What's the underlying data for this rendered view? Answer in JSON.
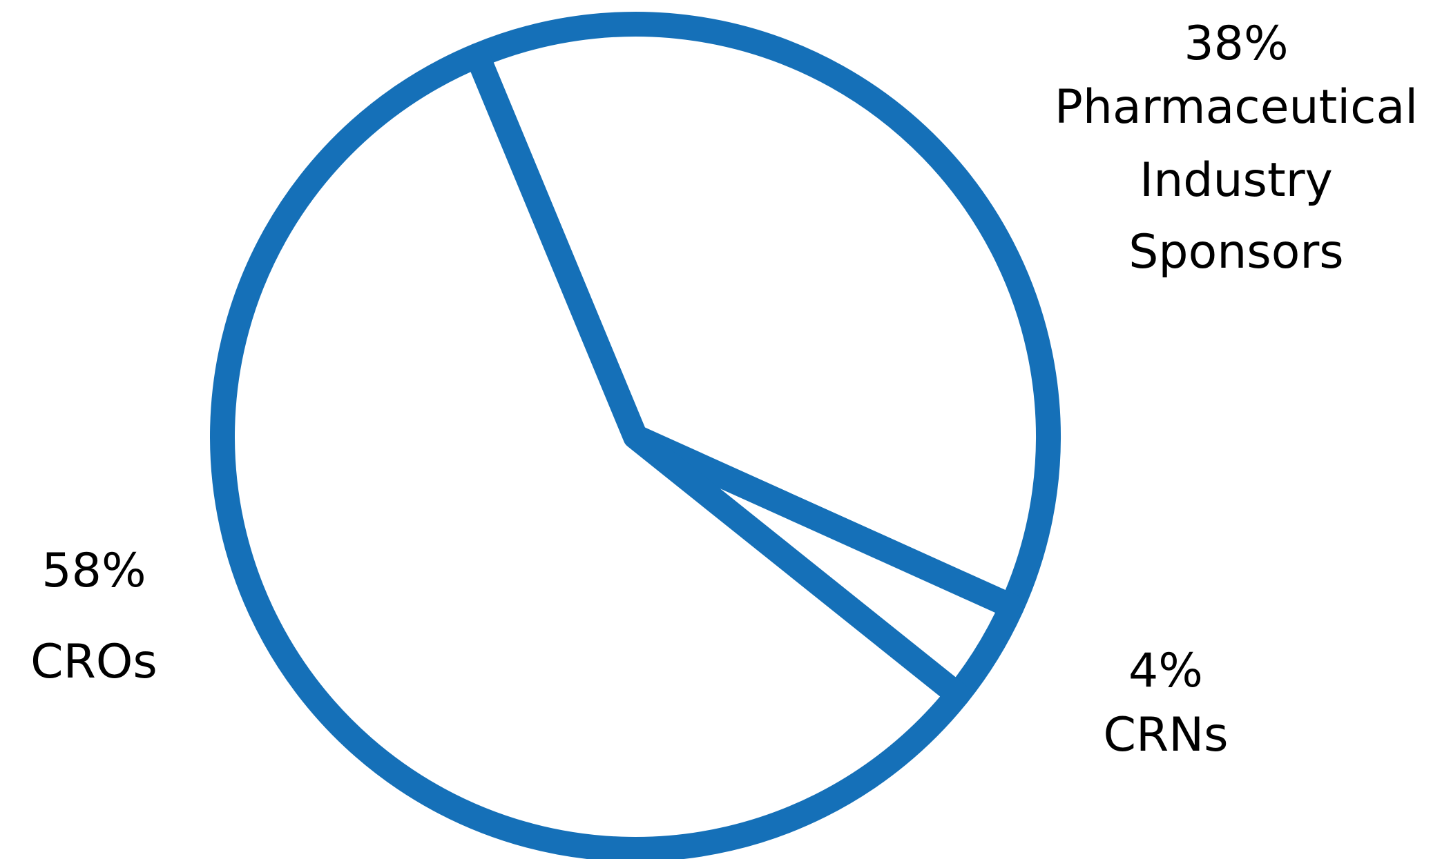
{
  "chart_data": {
    "type": "pie",
    "slices": [
      {
        "label": [
          "Pharmaceutical",
          "Industry",
          "Sponsors"
        ],
        "value": 38,
        "value_label": "38%"
      },
      {
        "label": [
          "CRNs"
        ],
        "value": 4,
        "value_label": "4%"
      },
      {
        "label": [
          "CROs"
        ],
        "value": 58,
        "value_label": "58%"
      }
    ],
    "stroke_color": "#1570B8",
    "fill_color": "#FFFFFF",
    "text_color": "#000000"
  }
}
